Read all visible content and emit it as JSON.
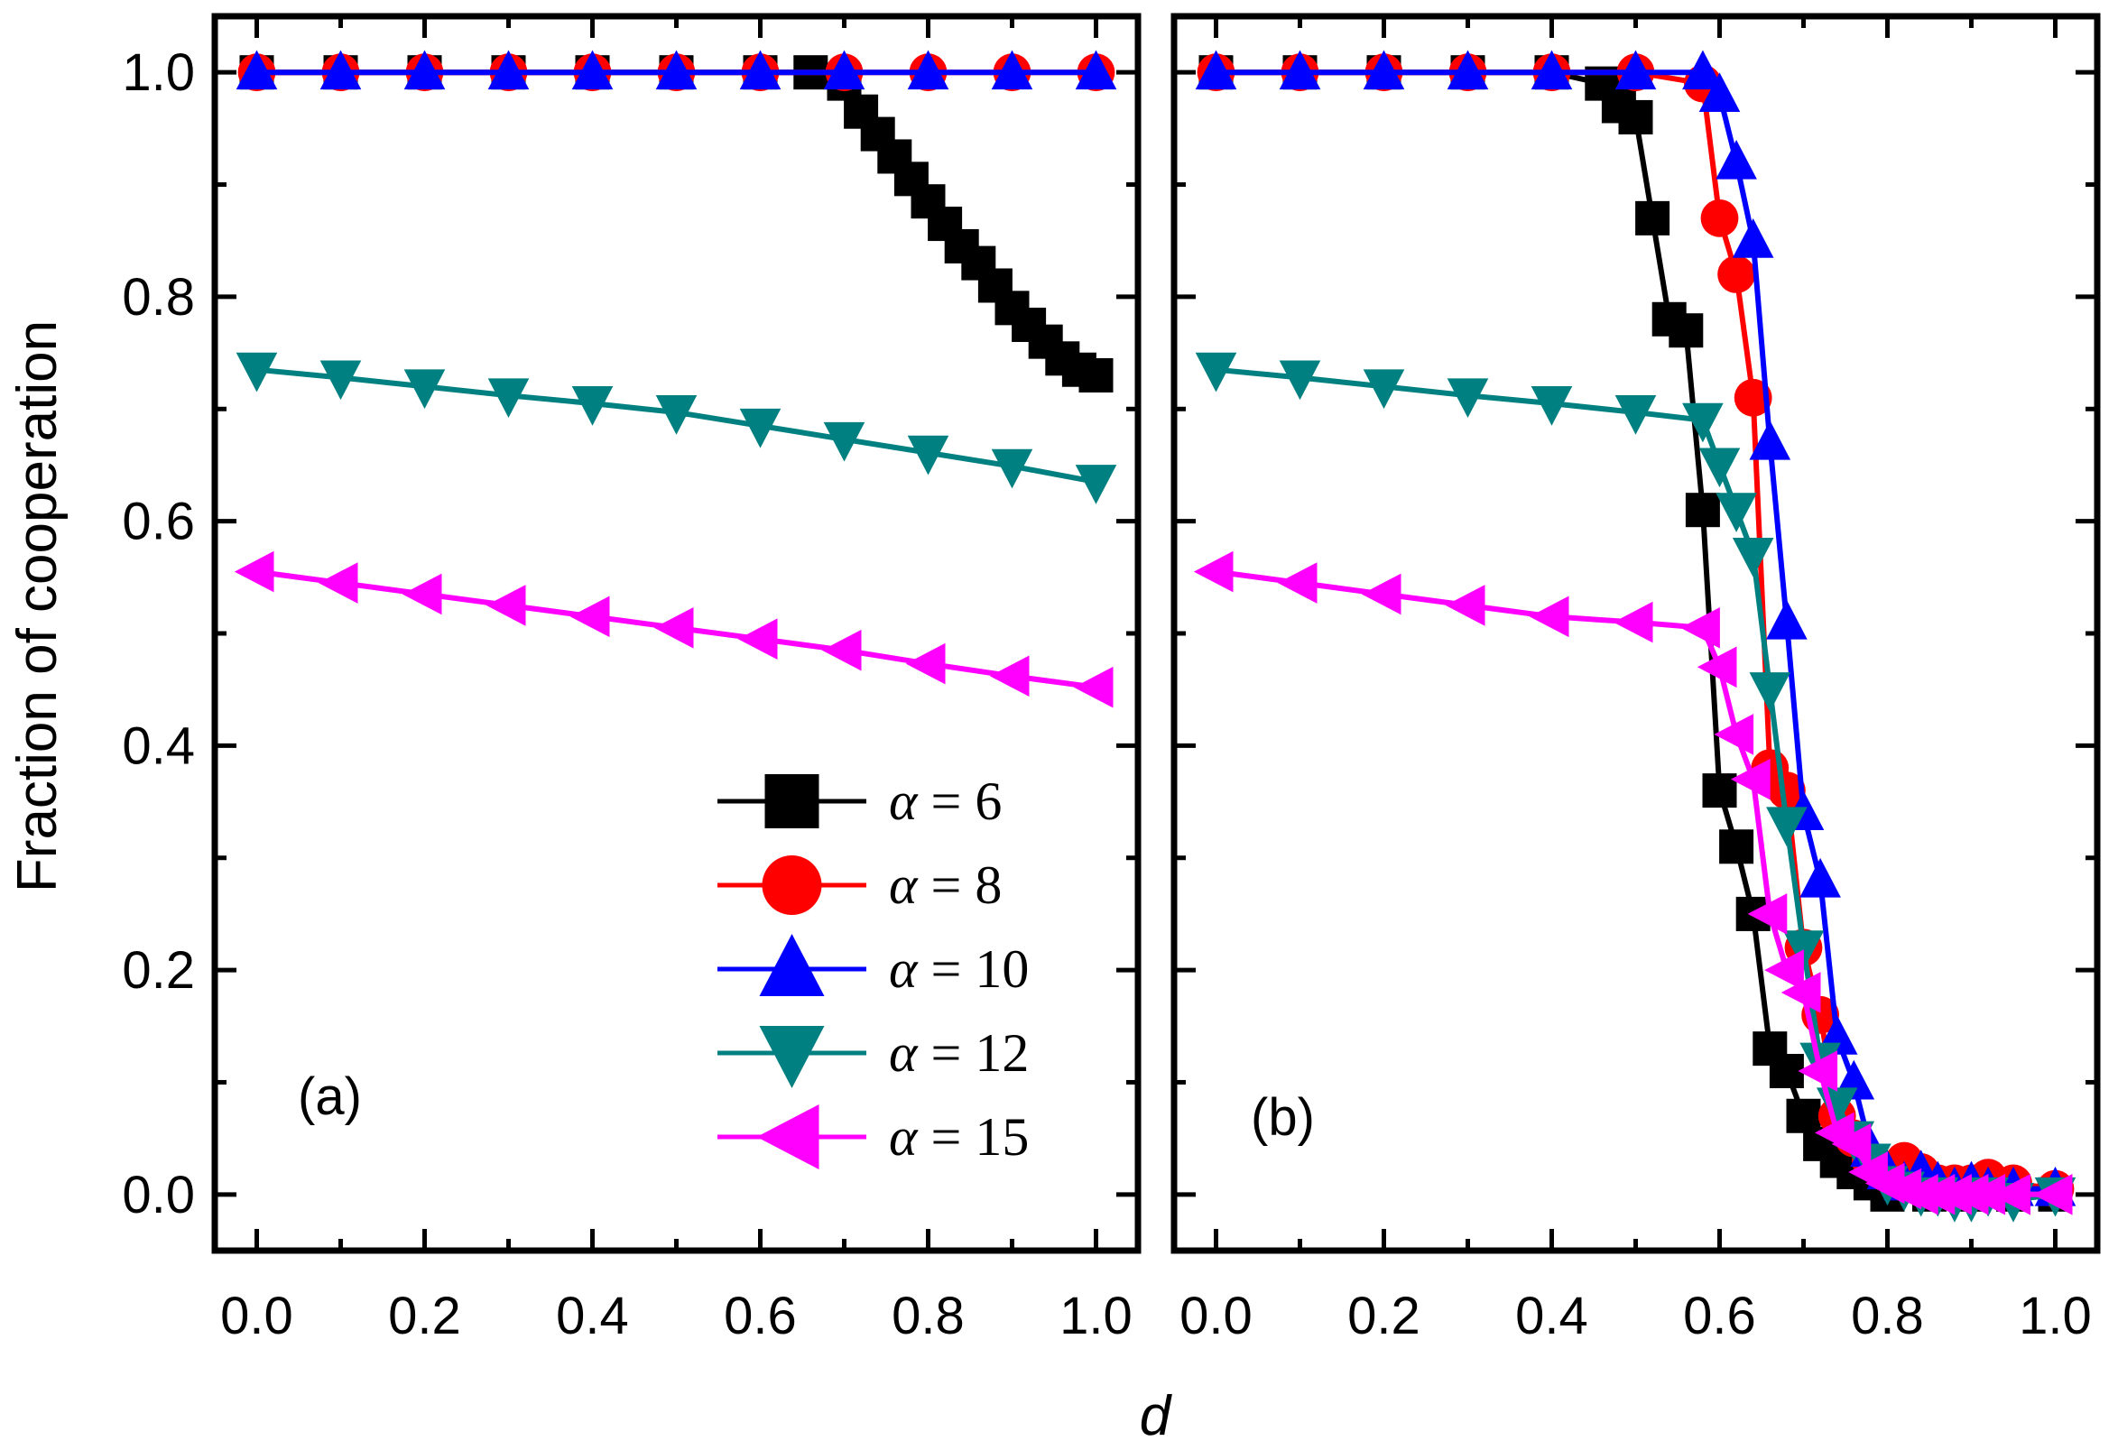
{
  "chart_data": [
    {
      "type": "line",
      "panel_label": "(a)",
      "xlabel": "d",
      "ylabel": "Fraction of cooperation",
      "xlim": [
        -0.05,
        1.05
      ],
      "ylim": [
        -0.05,
        1.05
      ],
      "xticks": [
        "0.0",
        "0.2",
        "0.4",
        "0.6",
        "0.8",
        "1.0"
      ],
      "yticks": [
        "0.0",
        "0.2",
        "0.4",
        "0.6",
        "0.8",
        "1.0"
      ],
      "legend_position": "bottom-right",
      "series": [
        {
          "name": "α = 6",
          "alpha": "6",
          "color": "#000000",
          "marker": "square",
          "x": [
            0.0,
            0.1,
            0.2,
            0.3,
            0.4,
            0.5,
            0.6,
            0.66,
            0.7,
            0.72,
            0.74,
            0.76,
            0.78,
            0.8,
            0.82,
            0.84,
            0.86,
            0.88,
            0.9,
            0.92,
            0.94,
            0.96,
            0.98,
            1.0
          ],
          "y": [
            1.0,
            1.0,
            1.0,
            1.0,
            1.0,
            1.0,
            1.0,
            1.0,
            0.99,
            0.965,
            0.945,
            0.925,
            0.905,
            0.885,
            0.865,
            0.845,
            0.83,
            0.81,
            0.79,
            0.775,
            0.76,
            0.745,
            0.735,
            0.73
          ]
        },
        {
          "name": "α = 8",
          "alpha": "8",
          "color": "#ff0000",
          "marker": "circle",
          "x": [
            0.0,
            0.1,
            0.2,
            0.3,
            0.4,
            0.5,
            0.6,
            0.7,
            0.8,
            0.9,
            1.0
          ],
          "y": [
            1.0,
            1.0,
            1.0,
            1.0,
            1.0,
            1.0,
            1.0,
            1.0,
            1.0,
            1.0,
            1.0
          ]
        },
        {
          "name": "α = 10",
          "alpha": "10",
          "color": "#0000ff",
          "marker": "triangle-up",
          "x": [
            0.0,
            0.1,
            0.2,
            0.3,
            0.4,
            0.5,
            0.6,
            0.7,
            0.8,
            0.9,
            1.0
          ],
          "y": [
            1.0,
            1.0,
            1.0,
            1.0,
            1.0,
            1.0,
            1.0,
            1.0,
            1.0,
            1.0,
            1.0
          ]
        },
        {
          "name": "α = 12",
          "alpha": "12",
          "color": "#008080",
          "marker": "triangle-down",
          "x": [
            0.0,
            0.1,
            0.2,
            0.3,
            0.4,
            0.5,
            0.6,
            0.7,
            0.8,
            0.9,
            1.0
          ],
          "y": [
            0.735,
            0.728,
            0.72,
            0.712,
            0.705,
            0.697,
            0.685,
            0.673,
            0.661,
            0.649,
            0.635
          ]
        },
        {
          "name": "α = 15",
          "alpha": "15",
          "color": "#ff00ff",
          "marker": "triangle-left",
          "x": [
            0.0,
            0.1,
            0.2,
            0.3,
            0.4,
            0.5,
            0.6,
            0.7,
            0.8,
            0.9,
            1.0
          ],
          "y": [
            0.555,
            0.545,
            0.535,
            0.525,
            0.515,
            0.505,
            0.495,
            0.485,
            0.473,
            0.462,
            0.452
          ]
        }
      ]
    },
    {
      "type": "line",
      "panel_label": "(b)",
      "xlabel": "d",
      "xlim": [
        -0.05,
        1.05
      ],
      "ylim": [
        -0.05,
        1.05
      ],
      "xticks": [
        "0.0",
        "0.2",
        "0.4",
        "0.6",
        "0.8",
        "1.0"
      ],
      "series": [
        {
          "name": "α = 6",
          "color": "#000000",
          "marker": "square",
          "x": [
            0.0,
            0.1,
            0.2,
            0.3,
            0.4,
            0.46,
            0.48,
            0.5,
            0.52,
            0.54,
            0.56,
            0.58,
            0.6,
            0.62,
            0.64,
            0.66,
            0.68,
            0.7,
            0.72,
            0.74,
            0.76,
            0.78,
            0.8,
            0.85,
            0.9,
            0.95,
            1.0
          ],
          "y": [
            1.0,
            1.0,
            1.0,
            1.0,
            1.0,
            0.99,
            0.97,
            0.96,
            0.87,
            0.78,
            0.77,
            0.61,
            0.36,
            0.31,
            0.25,
            0.13,
            0.11,
            0.07,
            0.045,
            0.03,
            0.02,
            0.01,
            0.0,
            0.0,
            0.0,
            0.0,
            0.0
          ]
        },
        {
          "name": "α = 8",
          "color": "#ff0000",
          "marker": "circle",
          "x": [
            0.0,
            0.1,
            0.2,
            0.3,
            0.4,
            0.5,
            0.58,
            0.6,
            0.62,
            0.64,
            0.66,
            0.68,
            0.7,
            0.72,
            0.74,
            0.76,
            0.78,
            0.8,
            0.82,
            0.84,
            0.86,
            0.88,
            0.9,
            0.92,
            0.95,
            1.0
          ],
          "y": [
            1.0,
            1.0,
            1.0,
            1.0,
            1.0,
            1.0,
            0.99,
            0.87,
            0.82,
            0.71,
            0.38,
            0.36,
            0.22,
            0.16,
            0.07,
            0.05,
            0.03,
            0.02,
            0.03,
            0.02,
            0.01,
            0.01,
            0.01,
            0.015,
            0.01,
            0.005
          ]
        },
        {
          "name": "α = 10",
          "color": "#0000ff",
          "marker": "triangle-up",
          "x": [
            0.0,
            0.1,
            0.2,
            0.3,
            0.4,
            0.5,
            0.58,
            0.6,
            0.62,
            0.64,
            0.66,
            0.68,
            0.7,
            0.72,
            0.74,
            0.76,
            0.78,
            0.8,
            0.82,
            0.84,
            0.86,
            0.88,
            0.9,
            0.92,
            0.95,
            1.0
          ],
          "y": [
            1.0,
            1.0,
            1.0,
            1.0,
            1.0,
            1.0,
            1.0,
            0.98,
            0.92,
            0.85,
            0.67,
            0.51,
            0.34,
            0.28,
            0.14,
            0.1,
            0.04,
            0.02,
            0.01,
            0.02,
            0.01,
            0.005,
            0.01,
            0.005,
            0.005,
            0.005
          ]
        },
        {
          "name": "α = 12",
          "color": "#008080",
          "marker": "triangle-down",
          "x": [
            0.0,
            0.1,
            0.2,
            0.3,
            0.4,
            0.5,
            0.58,
            0.6,
            0.62,
            0.64,
            0.66,
            0.68,
            0.7,
            0.72,
            0.74,
            0.76,
            0.78,
            0.8,
            0.82,
            0.84,
            0.86,
            0.88,
            0.9,
            0.92,
            0.95,
            1.0
          ],
          "y": [
            0.735,
            0.728,
            0.72,
            0.712,
            0.705,
            0.697,
            0.69,
            0.65,
            0.61,
            0.57,
            0.45,
            0.33,
            0.22,
            0.12,
            0.08,
            0.05,
            0.03,
            0.01,
            0.005,
            0.0,
            0.0,
            -0.005,
            -0.005,
            0.0,
            -0.005,
            0.0
          ]
        },
        {
          "name": "α = 15",
          "color": "#ff00ff",
          "marker": "triangle-left",
          "x": [
            0.0,
            0.1,
            0.2,
            0.3,
            0.4,
            0.5,
            0.58,
            0.6,
            0.62,
            0.64,
            0.66,
            0.68,
            0.7,
            0.72,
            0.74,
            0.76,
            0.78,
            0.8,
            0.82,
            0.84,
            0.86,
            0.88,
            0.9,
            0.92,
            0.95,
            1.0
          ],
          "y": [
            0.555,
            0.545,
            0.535,
            0.525,
            0.515,
            0.51,
            0.505,
            0.47,
            0.41,
            0.37,
            0.25,
            0.2,
            0.18,
            0.11,
            0.055,
            0.045,
            0.02,
            0.01,
            0.005,
            0.0,
            0.0,
            0.0,
            0.0,
            0.0,
            0.0,
            0.0
          ]
        }
      ]
    }
  ],
  "legend": {
    "entries": [
      {
        "greek": "α",
        "rest": " = 6",
        "color": "#000000",
        "marker": "square"
      },
      {
        "greek": "α",
        "rest": " = 8",
        "color": "#ff0000",
        "marker": "circle"
      },
      {
        "greek": "α",
        "rest": " = 10",
        "color": "#0000ff",
        "marker": "triangle-up"
      },
      {
        "greek": "α",
        "rest": " = 12",
        "color": "#008080",
        "marker": "triangle-down"
      },
      {
        "greek": "α",
        "rest": " = 15",
        "color": "#ff00ff",
        "marker": "triangle-left"
      }
    ]
  }
}
